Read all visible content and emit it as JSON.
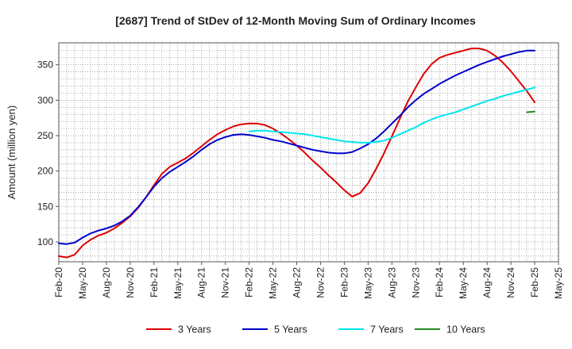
{
  "chart_data": {
    "type": "line",
    "title": "[2687]  Trend of StDev of 12-Month Moving Sum of Ordinary Incomes",
    "xlabel": "",
    "ylabel": "Amount (million yen)",
    "ylim": [
      72,
      381
    ],
    "yticks": [
      100,
      150,
      200,
      250,
      300,
      350
    ],
    "xticks": [
      "Feb-20",
      "May-20",
      "Aug-20",
      "Nov-20",
      "Feb-21",
      "May-21",
      "Aug-21",
      "Nov-21",
      "Feb-22",
      "May-22",
      "Aug-22",
      "Nov-22",
      "Feb-23",
      "May-23",
      "Aug-23",
      "Nov-23",
      "Feb-24",
      "May-24",
      "Aug-24",
      "Nov-24",
      "Feb-25",
      "May-25"
    ],
    "x_range_months": [
      0,
      63
    ],
    "series": [
      {
        "name": "3 Years",
        "color": "#dd0000",
        "x": [
          0,
          1,
          2,
          3,
          4,
          5,
          6,
          7,
          8,
          9,
          10,
          11,
          12,
          13,
          14,
          15,
          16,
          17,
          18,
          19,
          20,
          21,
          22,
          23,
          24,
          25,
          26,
          27,
          28,
          29,
          30,
          31,
          32,
          33,
          34,
          35,
          36,
          37,
          38,
          39,
          40,
          41,
          42,
          43,
          44,
          45,
          46,
          47,
          48,
          49,
          50,
          51,
          52,
          53,
          54,
          55,
          56,
          57,
          58,
          59,
          60
        ],
        "values": [
          80,
          78,
          82,
          95,
          103,
          109,
          113,
          119,
          127,
          136,
          148,
          163,
          180,
          196,
          206,
          212,
          218,
          226,
          235,
          244,
          252,
          258,
          263,
          266,
          267,
          267,
          265,
          260,
          253,
          245,
          236,
          226,
          215,
          205,
          194,
          184,
          173,
          164,
          169,
          183,
          203,
          225,
          249,
          274,
          298,
          318,
          337,
          351,
          360,
          364,
          367,
          370,
          373,
          373,
          370,
          363,
          353,
          341,
          327,
          313,
          297
        ]
      },
      {
        "name": "5 Years",
        "color": "#0000cc",
        "x": [
          0,
          1,
          2,
          3,
          4,
          5,
          6,
          7,
          8,
          9,
          10,
          11,
          12,
          13,
          14,
          15,
          16,
          17,
          18,
          19,
          20,
          21,
          22,
          23,
          24,
          25,
          26,
          27,
          28,
          29,
          30,
          31,
          32,
          33,
          34,
          35,
          36,
          37,
          38,
          39,
          40,
          41,
          42,
          43,
          44,
          45,
          46,
          47,
          48,
          49,
          50,
          51,
          52,
          53,
          54,
          55,
          56,
          57,
          58,
          59,
          60
        ],
        "values": [
          98,
          97,
          99,
          106,
          112,
          116,
          119,
          123,
          129,
          137,
          149,
          163,
          178,
          190,
          199,
          206,
          213,
          221,
          230,
          238,
          244,
          248,
          251,
          252,
          251,
          249,
          247,
          244,
          242,
          239,
          236,
          233,
          230,
          228,
          226,
          225,
          225,
          227,
          232,
          238,
          246,
          256,
          267,
          278,
          290,
          300,
          309,
          316,
          323,
          329,
          335,
          340,
          345,
          350,
          354,
          358,
          362,
          365,
          368,
          370,
          370
        ]
      },
      {
        "name": "7 Years",
        "color": "#00e5ee",
        "x": [
          24,
          25,
          26,
          27,
          28,
          29,
          30,
          31,
          32,
          33,
          34,
          35,
          36,
          37,
          38,
          39,
          40,
          41,
          42,
          43,
          44,
          45,
          46,
          47,
          48,
          49,
          50,
          51,
          52,
          53,
          54,
          55,
          56,
          57,
          58,
          59,
          60
        ],
        "values": [
          256,
          257,
          257,
          256,
          255,
          254,
          253,
          252,
          250,
          248,
          246,
          244,
          242,
          241,
          240,
          240,
          241,
          243,
          247,
          252,
          257,
          262,
          268,
          273,
          277,
          280,
          283,
          287,
          291,
          295,
          299,
          302,
          306,
          309,
          312,
          315,
          318
        ]
      },
      {
        "name": "10 Years",
        "color": "#228b22",
        "x": [
          59,
          60
        ],
        "values": [
          283,
          284
        ]
      }
    ]
  }
}
